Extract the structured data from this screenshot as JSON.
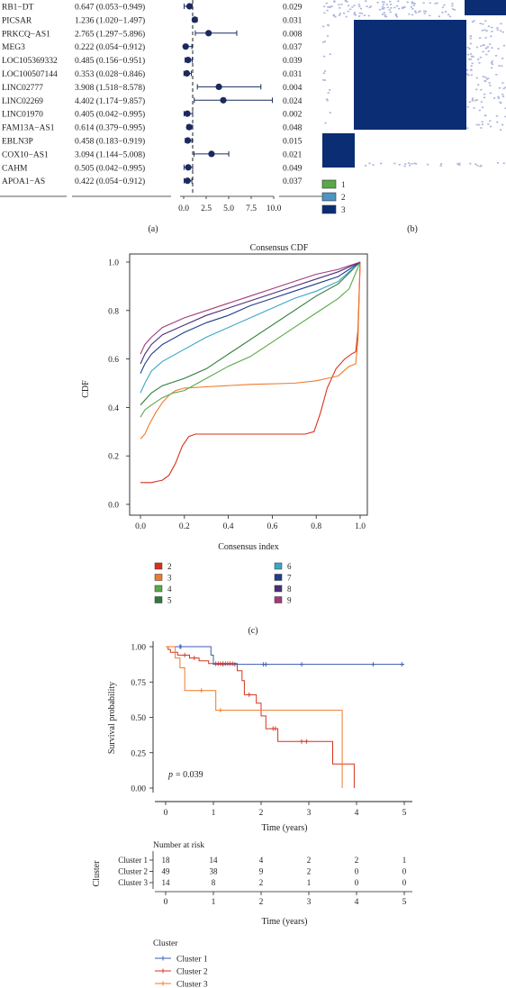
{
  "colors": {
    "navy": "#1a2a5e",
    "heat_dark": "#0b2d73",
    "heat_light": "#aab4dd",
    "cluster_green": "#5aa84a",
    "cluster_blue": "#4d93c5",
    "cluster_navy": "#0b2d73",
    "km_blue": "#3a5bb0",
    "km_red": "#d8321e",
    "km_orange": "#ef7a2a"
  },
  "panels": {
    "a": "(a)",
    "b": "(b)",
    "c": "(c)"
  },
  "chart_data": [
    {
      "type": "forest",
      "rows": [
        {
          "name": "RB1−DT",
          "hr_text": "0.647 (0.053−0.949)",
          "p_text": "0.029",
          "hr": 0.647,
          "lo": 0.053,
          "hi": 0.949
        },
        {
          "name": "PICSAR",
          "hr_text": "1.236 (1.020−1.497)",
          "p_text": "0.031",
          "hr": 1.236,
          "lo": 1.02,
          "hi": 1.497
        },
        {
          "name": "PRKCQ−AS1",
          "hr_text": "2.765 (1.297−5.896)",
          "p_text": "0.008",
          "hr": 2.765,
          "lo": 1.297,
          "hi": 5.896
        },
        {
          "name": "MEG3",
          "hr_text": "0.222 (0.054−0.912)",
          "p_text": "0.037",
          "hr": 0.222,
          "lo": 0.054,
          "hi": 0.912
        },
        {
          "name": "LOC105369332",
          "hr_text": "0.485 (0.156−0.951)",
          "p_text": "0.039",
          "hr": 0.485,
          "lo": 0.156,
          "hi": 0.951
        },
        {
          "name": "LOC100507144",
          "hr_text": "0.353 (0.028−0.846)",
          "p_text": "0.031",
          "hr": 0.353,
          "lo": 0.028,
          "hi": 0.846
        },
        {
          "name": "LINC02777",
          "hr_text": "3.908 (1.518−8.578)",
          "p_text": "0.004",
          "hr": 3.908,
          "lo": 1.518,
          "hi": 8.578
        },
        {
          "name": "LINC02269",
          "hr_text": "4.402 (1.174−9.857)",
          "p_text": "0.024",
          "hr": 4.402,
          "lo": 1.174,
          "hi": 9.857
        },
        {
          "name": "LINC01970",
          "hr_text": "0.405 (0.042−0.995)",
          "p_text": "0.002",
          "hr": 0.405,
          "lo": 0.042,
          "hi": 0.995
        },
        {
          "name": "FAM13A−AS1",
          "hr_text": "0.614 (0.379−0.995)",
          "p_text": "0.048",
          "hr": 0.614,
          "lo": 0.379,
          "hi": 0.995
        },
        {
          "name": "EBLN3P",
          "hr_text": "0.458 (0.183−0.919)",
          "p_text": "0.015",
          "hr": 0.458,
          "lo": 0.183,
          "hi": 0.919
        },
        {
          "name": "COX10−AS1",
          "hr_text": "3.094 (1.144−5.008)",
          "p_text": "0.021",
          "hr": 3.094,
          "lo": 1.144,
          "hi": 5.008
        },
        {
          "name": "CAHM",
          "hr_text": "0.505 (0.042−0.995)",
          "p_text": "0.049",
          "hr": 0.505,
          "lo": 0.042,
          "hi": 0.995
        },
        {
          "name": "APOA1−AS",
          "hr_text": "0.422 (0.054−0.912)",
          "p_text": "0.037",
          "hr": 0.422,
          "lo": 0.054,
          "hi": 0.912
        }
      ],
      "x_ticks": [
        "0.0",
        "2.5",
        "5.0",
        "7.5",
        "10.0"
      ],
      "xlim": [
        0,
        10
      ],
      "reference_line": 1
    },
    {
      "type": "heatmap",
      "legend": [
        "1",
        "2",
        "3"
      ]
    },
    {
      "type": "line",
      "title": "Consensus CDF",
      "xlabel": "Consensus index",
      "ylabel": "CDF",
      "xlim": [
        0,
        1
      ],
      "ylim": [
        0,
        1
      ],
      "x_ticks": [
        "0.0",
        "0.2",
        "0.4",
        "0.6",
        "0.8",
        "1.0"
      ],
      "y_ticks": [
        "0.0",
        "0.2",
        "0.4",
        "0.6",
        "0.8",
        "1.0"
      ],
      "legend_position": "bottom",
      "series": [
        {
          "name": "2",
          "color": "#d8321e",
          "points": [
            [
              0.0,
              0.09
            ],
            [
              0.05,
              0.09
            ],
            [
              0.1,
              0.1
            ],
            [
              0.13,
              0.12
            ],
            [
              0.16,
              0.17
            ],
            [
              0.19,
              0.24
            ],
            [
              0.22,
              0.28
            ],
            [
              0.25,
              0.29
            ],
            [
              0.45,
              0.29
            ],
            [
              0.6,
              0.29
            ],
            [
              0.75,
              0.29
            ],
            [
              0.79,
              0.3
            ],
            [
              0.82,
              0.38
            ],
            [
              0.85,
              0.48
            ],
            [
              0.89,
              0.56
            ],
            [
              0.93,
              0.6
            ],
            [
              0.96,
              0.62
            ],
            [
              0.98,
              0.63
            ],
            [
              0.99,
              0.72
            ],
            [
              1.0,
              1.0
            ]
          ]
        },
        {
          "name": "3",
          "color": "#ef7a2a",
          "points": [
            [
              0.0,
              0.27
            ],
            [
              0.01,
              0.28
            ],
            [
              0.02,
              0.29
            ],
            [
              0.04,
              0.33
            ],
            [
              0.07,
              0.38
            ],
            [
              0.1,
              0.42
            ],
            [
              0.13,
              0.45
            ],
            [
              0.16,
              0.47
            ],
            [
              0.2,
              0.48
            ],
            [
              0.3,
              0.485
            ],
            [
              0.5,
              0.495
            ],
            [
              0.7,
              0.5
            ],
            [
              0.8,
              0.51
            ],
            [
              0.85,
              0.52
            ],
            [
              0.9,
              0.53
            ],
            [
              0.95,
              0.57
            ],
            [
              0.98,
              0.58
            ],
            [
              0.99,
              0.68
            ],
            [
              1.0,
              1.0
            ]
          ]
        },
        {
          "name": "4",
          "color": "#5aa84a",
          "points": [
            [
              0.0,
              0.36
            ],
            [
              0.02,
              0.39
            ],
            [
              0.05,
              0.41
            ],
            [
              0.1,
              0.44
            ],
            [
              0.15,
              0.46
            ],
            [
              0.2,
              0.47
            ],
            [
              0.3,
              0.52
            ],
            [
              0.4,
              0.57
            ],
            [
              0.5,
              0.61
            ],
            [
              0.6,
              0.67
            ],
            [
              0.7,
              0.73
            ],
            [
              0.8,
              0.79
            ],
            [
              0.9,
              0.85
            ],
            [
              0.95,
              0.89
            ],
            [
              1.0,
              1.0
            ]
          ]
        },
        {
          "name": "5",
          "color": "#2e7a3a",
          "points": [
            [
              0.0,
              0.41
            ],
            [
              0.02,
              0.43
            ],
            [
              0.05,
              0.46
            ],
            [
              0.1,
              0.49
            ],
            [
              0.2,
              0.52
            ],
            [
              0.3,
              0.56
            ],
            [
              0.4,
              0.62
            ],
            [
              0.5,
              0.68
            ],
            [
              0.6,
              0.74
            ],
            [
              0.7,
              0.8
            ],
            [
              0.8,
              0.86
            ],
            [
              0.9,
              0.91
            ],
            [
              1.0,
              1.0
            ]
          ]
        },
        {
          "name": "6",
          "color": "#3aa6c4",
          "points": [
            [
              0.0,
              0.46
            ],
            [
              0.02,
              0.5
            ],
            [
              0.05,
              0.55
            ],
            [
              0.1,
              0.59
            ],
            [
              0.2,
              0.64
            ],
            [
              0.3,
              0.69
            ],
            [
              0.4,
              0.73
            ],
            [
              0.5,
              0.77
            ],
            [
              0.6,
              0.81
            ],
            [
              0.7,
              0.85
            ],
            [
              0.8,
              0.88
            ],
            [
              0.9,
              0.92
            ],
            [
              1.0,
              1.0
            ]
          ]
        },
        {
          "name": "7",
          "color": "#1f3d8a",
          "points": [
            [
              0.0,
              0.54
            ],
            [
              0.02,
              0.58
            ],
            [
              0.05,
              0.62
            ],
            [
              0.1,
              0.66
            ],
            [
              0.2,
              0.71
            ],
            [
              0.3,
              0.75
            ],
            [
              0.4,
              0.78
            ],
            [
              0.5,
              0.82
            ],
            [
              0.6,
              0.85
            ],
            [
              0.7,
              0.88
            ],
            [
              0.8,
              0.91
            ],
            [
              0.9,
              0.94
            ],
            [
              1.0,
              1.0
            ]
          ]
        },
        {
          "name": "8",
          "color": "#4a2f7a",
          "points": [
            [
              0.0,
              0.58
            ],
            [
              0.02,
              0.62
            ],
            [
              0.05,
              0.66
            ],
            [
              0.1,
              0.7
            ],
            [
              0.2,
              0.74
            ],
            [
              0.3,
              0.78
            ],
            [
              0.4,
              0.81
            ],
            [
              0.5,
              0.84
            ],
            [
              0.6,
              0.87
            ],
            [
              0.7,
              0.9
            ],
            [
              0.8,
              0.93
            ],
            [
              0.9,
              0.96
            ],
            [
              1.0,
              1.0
            ]
          ]
        },
        {
          "name": "9",
          "color": "#a33a78",
          "points": [
            [
              0.0,
              0.62
            ],
            [
              0.02,
              0.66
            ],
            [
              0.05,
              0.69
            ],
            [
              0.1,
              0.73
            ],
            [
              0.2,
              0.77
            ],
            [
              0.3,
              0.8
            ],
            [
              0.4,
              0.83
            ],
            [
              0.5,
              0.86
            ],
            [
              0.6,
              0.89
            ],
            [
              0.7,
              0.92
            ],
            [
              0.8,
              0.95
            ],
            [
              0.9,
              0.97
            ],
            [
              1.0,
              1.0
            ]
          ]
        }
      ]
    },
    {
      "type": "line",
      "subtype": "kaplan-meier",
      "xlabel": "Time (years)",
      "ylabel": "Survival probability",
      "xlim": [
        0,
        5
      ],
      "ylim": [
        0,
        1
      ],
      "x_ticks": [
        "0",
        "1",
        "2",
        "3",
        "4",
        "5"
      ],
      "y_ticks": [
        "0.00",
        "0.25",
        "0.50",
        "0.75",
        "1.00"
      ],
      "pvalue_label": "p",
      "pvalue_text": "= 0.039",
      "legend_title": "Cluster",
      "series": [
        {
          "name": "Cluster 1",
          "color": "#3a5bb0",
          "steps": [
            [
              0,
              1.0
            ],
            [
              0.95,
              1.0
            ],
            [
              0.95,
              0.94
            ],
            [
              1.0,
              0.94
            ],
            [
              1.0,
              0.875
            ],
            [
              5.0,
              0.875
            ]
          ],
          "censors": [
            [
              0.3,
              1.0
            ],
            [
              0.32,
              1.0
            ],
            [
              1.2,
              0.875
            ],
            [
              1.45,
              0.875
            ],
            [
              2.05,
              0.875
            ],
            [
              2.1,
              0.875
            ],
            [
              2.85,
              0.875
            ],
            [
              4.35,
              0.875
            ],
            [
              4.95,
              0.875
            ]
          ]
        },
        {
          "name": "Cluster 2",
          "color": "#d8321e",
          "steps": [
            [
              0,
              1.0
            ],
            [
              0.05,
              1.0
            ],
            [
              0.05,
              0.98
            ],
            [
              0.1,
              0.98
            ],
            [
              0.1,
              0.96
            ],
            [
              0.25,
              0.96
            ],
            [
              0.25,
              0.94
            ],
            [
              0.5,
              0.94
            ],
            [
              0.5,
              0.92
            ],
            [
              0.7,
              0.92
            ],
            [
              0.7,
              0.9
            ],
            [
              0.9,
              0.9
            ],
            [
              0.9,
              0.88
            ],
            [
              1.5,
              0.88
            ],
            [
              1.5,
              0.83
            ],
            [
              1.6,
              0.83
            ],
            [
              1.6,
              0.76
            ],
            [
              1.65,
              0.76
            ],
            [
              1.65,
              0.66
            ],
            [
              1.9,
              0.66
            ],
            [
              1.9,
              0.6
            ],
            [
              2.0,
              0.6
            ],
            [
              2.0,
              0.51
            ],
            [
              2.1,
              0.51
            ],
            [
              2.1,
              0.42
            ],
            [
              2.35,
              0.42
            ],
            [
              2.35,
              0.33
            ],
            [
              3.5,
              0.33
            ],
            [
              3.5,
              0.17
            ],
            [
              3.95,
              0.17
            ],
            [
              3.95,
              0.0
            ]
          ],
          "censors": [
            [
              0.4,
              0.94
            ],
            [
              0.6,
              0.92
            ],
            [
              1.05,
              0.88
            ],
            [
              1.1,
              0.88
            ],
            [
              1.15,
              0.88
            ],
            [
              1.2,
              0.88
            ],
            [
              1.25,
              0.88
            ],
            [
              1.3,
              0.88
            ],
            [
              1.35,
              0.88
            ],
            [
              1.4,
              0.88
            ],
            [
              1.75,
              0.66
            ],
            [
              2.25,
              0.42
            ],
            [
              2.3,
              0.42
            ],
            [
              2.85,
              0.33
            ],
            [
              2.95,
              0.33
            ]
          ]
        },
        {
          "name": "Cluster 3",
          "color": "#ef7a2a",
          "steps": [
            [
              0,
              1.0
            ],
            [
              0.2,
              1.0
            ],
            [
              0.2,
              0.92
            ],
            [
              0.3,
              0.92
            ],
            [
              0.3,
              0.85
            ],
            [
              0.4,
              0.85
            ],
            [
              0.4,
              0.69
            ],
            [
              1.05,
              0.69
            ],
            [
              1.05,
              0.55
            ],
            [
              3.7,
              0.55
            ],
            [
              3.7,
              0.0
            ]
          ],
          "censors": [
            [
              0.75,
              0.69
            ],
            [
              1.15,
              0.55
            ]
          ]
        }
      ]
    }
  ],
  "risk_table": {
    "title": "Number at risk",
    "ylabel": "Cluster",
    "xlabel": "Time (years)",
    "x_ticks": [
      "0",
      "1",
      "2",
      "3",
      "4",
      "5"
    ],
    "rows": [
      {
        "label": "Cluster 1",
        "values": [
          "18",
          "14",
          "4",
          "2",
          "2",
          "1"
        ]
      },
      {
        "label": "Cluster 2",
        "values": [
          "49",
          "38",
          "9",
          "2",
          "0",
          "0"
        ]
      },
      {
        "label": "Cluster 3",
        "values": [
          "14",
          "8",
          "2",
          "1",
          "0",
          "0"
        ]
      }
    ]
  }
}
